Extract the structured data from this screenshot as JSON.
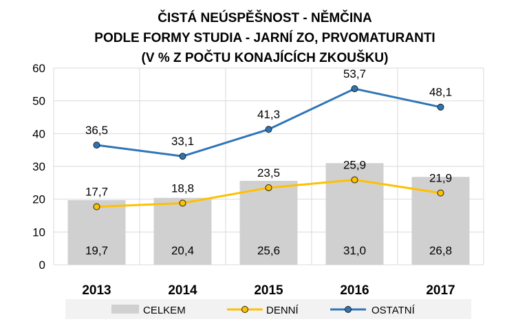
{
  "chart_data": {
    "type": "bar",
    "title": [
      "ČISTÁ NEÚSPĚŠNOST - NĚMČINA",
      "PODLE FORMY STUDIA - JARNÍ ZO, PRVOMATURANTI",
      "(V % Z POČTU KONAJÍCÍCH ZKOUŠKU)"
    ],
    "categories": [
      "2013",
      "2014",
      "2015",
      "2016",
      "2017"
    ],
    "ylim": [
      0,
      60
    ],
    "yticks": [
      "0",
      "10",
      "20",
      "30",
      "40",
      "50",
      "60"
    ],
    "grid": true,
    "legend_position": "bottom",
    "series": [
      {
        "name": "CELKEM",
        "type": "bar",
        "color": "#d0d0d0",
        "values": [
          19.7,
          20.4,
          25.6,
          31.0,
          26.8
        ],
        "labels": [
          "19,7",
          "20,4",
          "25,6",
          "31,0",
          "26,8"
        ]
      },
      {
        "name": "DENNÍ",
        "type": "line",
        "color": "#ffc000",
        "values": [
          17.7,
          18.8,
          23.5,
          25.9,
          21.9
        ],
        "labels": [
          "17,7",
          "18,8",
          "23,5",
          "25,9",
          "21,9"
        ]
      },
      {
        "name": "OSTATNÍ",
        "type": "line",
        "color": "#2e75b6",
        "values": [
          36.5,
          33.1,
          41.3,
          53.7,
          48.1
        ],
        "labels": [
          "36,5",
          "33,1",
          "41,3",
          "53,7",
          "48,1"
        ]
      }
    ]
  }
}
